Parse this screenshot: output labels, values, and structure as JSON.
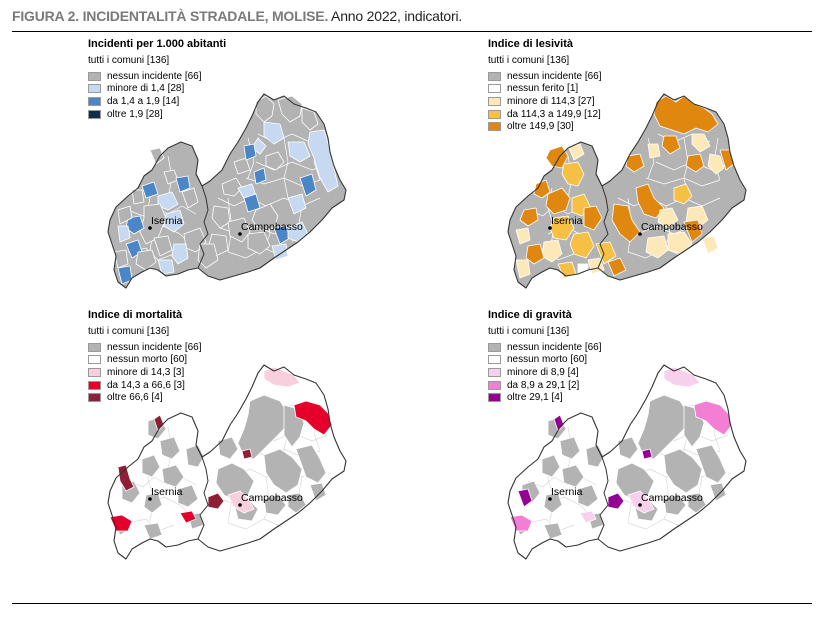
{
  "figure": {
    "title": "FIGURA 2. INCIDENTALITÀ STRADALE, MOLISE.",
    "subtitle": " Anno 2022, indicatori."
  },
  "cities": {
    "isernia": "Isernia",
    "campobasso": "Campobasso"
  },
  "panels": [
    {
      "id": "incidenti",
      "title": "Incidenti per 1.000 abitanti",
      "subtitle": "tutti i comuni [136]",
      "legend": [
        {
          "label": "nessun incidente [66]",
          "color": "#b3b3b3"
        },
        {
          "label": "minore di 1,4 [28]",
          "color": "#c6d9f0"
        },
        {
          "label": "da 1,4 a 1,9 [14]",
          "color": "#4a86c8"
        },
        {
          "label": "oltre 1,9 [28]",
          "color": "#0b2e4c"
        }
      ],
      "base_color": "#b3b3b3"
    },
    {
      "id": "lesivita",
      "title": "Indice di lesività",
      "subtitle": "tutti i comuni [136]",
      "legend": [
        {
          "label": "nessun incidente [66]",
          "color": "#b3b3b3"
        },
        {
          "label": "nessun ferito [1]",
          "color": "#ffffff"
        },
        {
          "label": "minore di 114,3 [27]",
          "color": "#fde9b8"
        },
        {
          "label": "da 114,3 a 149,9 [12]",
          "color": "#f6c044"
        },
        {
          "label": "oltre 149,9 [30]",
          "color": "#e0870f"
        }
      ],
      "base_color": "#b3b3b3"
    },
    {
      "id": "mortalita",
      "title": "Indice di mortalità",
      "subtitle": "tutti i comuni [136]",
      "legend": [
        {
          "label": "nessun incidente [66]",
          "color": "#b3b3b3"
        },
        {
          "label": "nessun morto [60]",
          "color": "#ffffff"
        },
        {
          "label": "minore di 14,3 [3]",
          "color": "#f8cfdc"
        },
        {
          "label": "da 14,3 a 66,6 [3]",
          "color": "#e4002b"
        },
        {
          "label": "oltre 66,6 [4]",
          "color": "#8e1f35"
        }
      ],
      "base_color": "#ffffff"
    },
    {
      "id": "gravita",
      "title": "Indice di gravità",
      "subtitle": "tutti i comuni [136]",
      "legend": [
        {
          "label": "nessun incidente [66]",
          "color": "#b3b3b3"
        },
        {
          "label": "nessun morto [60]",
          "color": "#ffffff"
        },
        {
          "label": "minore di 8,9 [4]",
          "color": "#f7d0ec"
        },
        {
          "label": "da 8,9 a 29,1 [2]",
          "color": "#f27fd3"
        },
        {
          "label": "oltre 29,1 [4]",
          "color": "#950095"
        }
      ],
      "base_color": "#ffffff"
    }
  ]
}
